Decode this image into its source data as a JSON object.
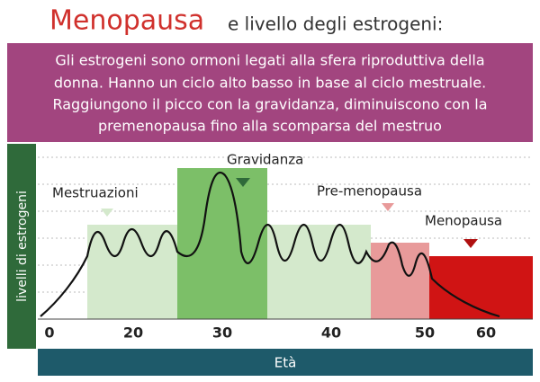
{
  "header": {
    "title": "Menopausa",
    "subtitle": "e livello degli estrogeni:"
  },
  "description": {
    "lines": [
      "Gli estrogeni sono ormoni legati alla sfera riproduttiva della",
      "donna. Hanno un ciclo alto basso in base al ciclo mestruale.",
      "Raggiungono il picco con la gravidanza, diminuiscono con la",
      "premenopausa fino alla scomparsa del mestruo"
    ]
  },
  "chart": {
    "y_label": "livelli di estrogeni",
    "x_label": "Età",
    "phases": [
      "Mestruazioni",
      "Gravidanza",
      "Pre-menopausa",
      "Menopausa"
    ],
    "x_tick_labels": [
      "0",
      "20",
      "30",
      "40",
      "50",
      "60"
    ]
  }
}
